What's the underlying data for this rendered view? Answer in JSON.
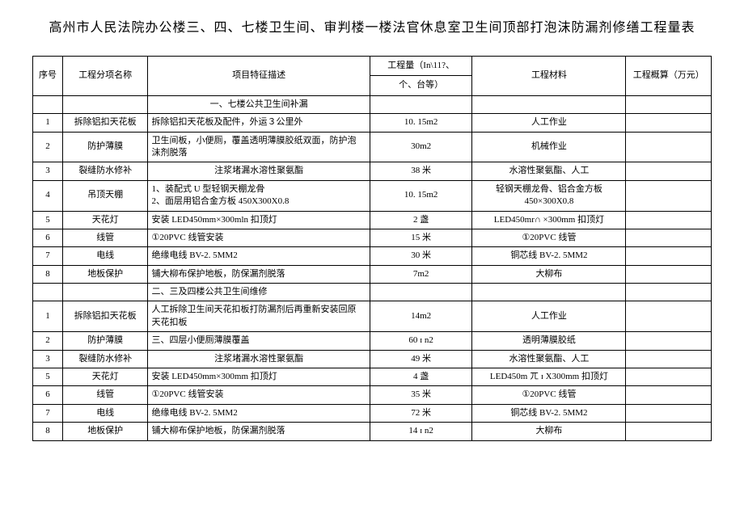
{
  "title": "高州市人民法院办公楼三、四、七楼卫生间、审判楼一楼法官休息室卫生间顶部打泡沫防漏剂修缮工程量表",
  "columns": {
    "seq": "序号",
    "name": "工程分项名称",
    "desc": "项目特征描述",
    "qty_line1": "工程量（In\\11?、",
    "qty_line2": "个、台等）",
    "material": "工程材料",
    "cost": "工程概算（万元）"
  },
  "section1": {
    "header": "一、七楼公共卫生间补漏",
    "rows": [
      {
        "seq": "1",
        "name": "拆除铝扣天花板",
        "desc": "拆除铝扣天花板及配件，外运３公里外",
        "qty": "10. 15m2",
        "material": "人工作业"
      },
      {
        "seq": "2",
        "name": "防护薄膜",
        "desc": "卫生间板，小便厕，覆盖透明薄膜胶纸双面，防护泡沫剂脱落",
        "qty": "30m2",
        "material": "机械作业"
      },
      {
        "seq": "3",
        "name": "裂缝防水修补",
        "desc": "注浆堵漏水溶性聚氨酯",
        "qty": "38 米",
        "material": "水溶性聚氨酯、人工",
        "desc_center": true
      },
      {
        "seq": "4",
        "name": "吊顶天棚",
        "desc": "1、装配式 U 型轻钢天棚龙骨\n2、面层用铝合金方板 450X300X0.8",
        "qty": "10. 15m2",
        "material": "轻钢天棚龙骨、铝合金方板450×300X0.8"
      },
      {
        "seq": "5",
        "name": "天花灯",
        "desc": "安装 LED450mm×300mln 扣顶灯",
        "qty": "2 盏",
        "material": "LED450mr∩ ×300mm 扣顶灯"
      },
      {
        "seq": "6",
        "name": "线管",
        "desc": "①20PVC 线管安装",
        "qty": "15 米",
        "material": "①20PVC 线管"
      },
      {
        "seq": "7",
        "name": "电线",
        "desc": "绝缘电线 BV-2. 5MM2",
        "qty": "30 米",
        "material": "铜芯线 BV-2. 5MM2"
      },
      {
        "seq": "8",
        "name": "地板保护",
        "desc": "铺大柳布保护地板，防保漏剂脱落",
        "qty": "7m2",
        "material": "大柳布"
      }
    ]
  },
  "section2": {
    "header": "二、三及四楼公共卫生间维修",
    "rows": [
      {
        "seq": "1",
        "name": "拆除铝扣天花板",
        "desc": "人工拆除卫生间天花扣板打防漏剂后再重新安装回原天花扣板",
        "qty": "14m2",
        "material": "人工作业"
      },
      {
        "seq": "2",
        "name": "防护薄膜",
        "desc": "三、四层小便厕薄膜覆盖",
        "qty": "60 ɪ n2",
        "material": "透明薄膜胶纸"
      },
      {
        "seq": "3",
        "name": "裂缝防水修补",
        "desc": "注浆堵漏水溶性聚氨酯",
        "qty": "49 米",
        "material": "水溶性聚氨酯、人工",
        "desc_center": true
      },
      {
        "seq": "5",
        "name": "天花灯",
        "desc": "安装 LED450mm×300mm 扣顶灯",
        "qty": "4 盏",
        "material": "LED450m ㄫ ɪ X300mm 扣顶灯"
      },
      {
        "seq": "6",
        "name": "线管",
        "desc": "①20PVC 线管安装",
        "qty": "35 米",
        "material": "①20PVC 线管"
      },
      {
        "seq": "7",
        "name": "电线",
        "desc": "绝缘电线 BV-2. 5MM2",
        "qty": "72 米",
        "material": "铜芯线 BV-2. 5MM2"
      },
      {
        "seq": "8",
        "name": "地板保护",
        "desc": "铺大柳布保护地板，防保漏剂脱落",
        "qty": "14 ɪ n2",
        "material": "大柳布"
      }
    ]
  }
}
